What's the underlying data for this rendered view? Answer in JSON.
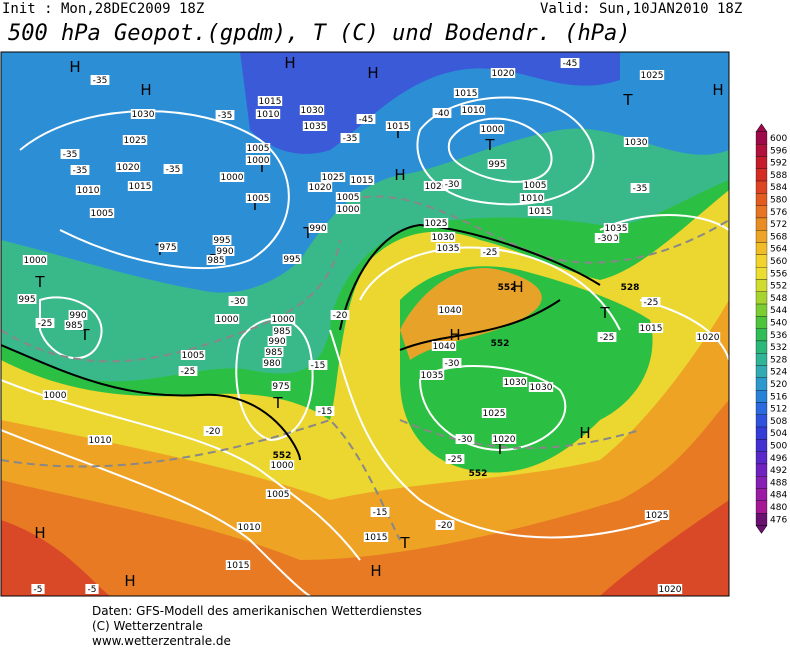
{
  "header": {
    "init": "Init : Mon,28DEC2009 18Z",
    "valid": "Valid: Sun,10JAN2010 18Z",
    "title": "500 hPa Geopot.(gpdm), T (C) und Bodendr. (hPa)"
  },
  "legend": {
    "levels": [
      600,
      596,
      592,
      588,
      584,
      580,
      576,
      572,
      568,
      564,
      560,
      556,
      552,
      548,
      544,
      540,
      536,
      532,
      528,
      524,
      520,
      516,
      512,
      508,
      504,
      500,
      496,
      492,
      488,
      484,
      480,
      476
    ]
  },
  "map": {
    "pressure_centers": [
      "H",
      "H",
      "H",
      "H",
      "T",
      "H",
      "T",
      "T",
      "T",
      "H",
      "T",
      "T",
      "T",
      "T",
      "H",
      "H",
      "T",
      "T",
      "T",
      "H",
      "H",
      "H",
      "T",
      "H",
      "T",
      "T"
    ],
    "isobar_labels": [
      1020,
      1025,
      1015,
      1010,
      1000,
      995,
      1005,
      1010,
      1015,
      1030,
      1030,
      1035,
      1015,
      1010,
      1015,
      1030,
      1025,
      1020,
      1015,
      1010,
      1005,
      1000,
      1005,
      1000,
      1025,
      1020,
      1015,
      1005,
      1000,
      1005,
      990,
      995,
      995,
      990,
      985,
      975,
      1000,
      995,
      990,
      985,
      1000,
      1000,
      985,
      990,
      985,
      980,
      975,
      1005,
      1000,
      1010,
      1000,
      1005,
      1010,
      1015,
      1015,
      1020,
      1025,
      1030,
      1035,
      1040,
      1040,
      1035,
      1030,
      1030,
      1025,
      1020,
      1035,
      1030,
      1015,
      1020,
      1025,
      1020
    ],
    "temperature_labels": [
      -35,
      -35,
      -35,
      -35,
      -35,
      -40,
      -45,
      -45,
      -35,
      -35,
      -30,
      -30,
      -25,
      -25,
      -30,
      -25,
      -25,
      -25,
      -30,
      -20,
      -15,
      -15,
      -20,
      -30,
      -25,
      -15,
      -20,
      -5,
      -5
    ],
    "thickness_labels": [
      552,
      552,
      552,
      552,
      528
    ]
  },
  "footer": {
    "lines": [
      "Daten: GFS-Modell des amerikanischen Wetterdienstes",
      "(C) Wetterzentrale",
      "www.wetterzentrale.de"
    ]
  }
}
